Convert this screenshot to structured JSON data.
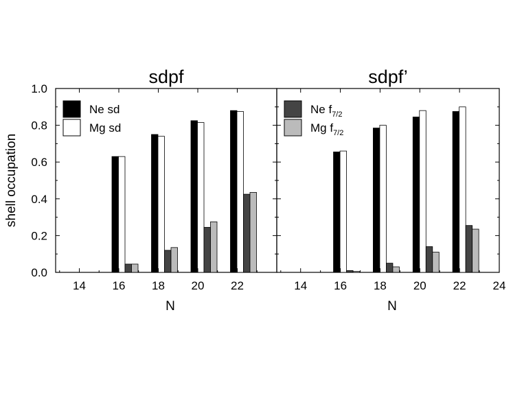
{
  "chart_data": [
    {
      "type": "bar",
      "title": "sdpf",
      "xlabel": "N",
      "ylabel": "shell occupation",
      "xlim": [
        12.8,
        24
      ],
      "ylim": [
        0.0,
        1.0
      ],
      "x_ticks": [
        "14",
        "16",
        "18",
        "20",
        "22"
      ],
      "y_ticks": [
        "0.0",
        "0.2",
        "0.4",
        "0.6",
        "0.8",
        "1.0"
      ],
      "legend": {
        "placement": "top-left",
        "entries": [
          {
            "main": "Ne sd",
            "sub": "",
            "color": "#000000"
          },
          {
            "main": "Mg sd",
            "sub": "",
            "color": "#ffffff"
          }
        ]
      },
      "categories": [
        16,
        18,
        20,
        22
      ],
      "series": [
        {
          "name": "Ne sd",
          "color": "#000000",
          "values": [
            0.63,
            0.75,
            0.825,
            0.88
          ]
        },
        {
          "name": "Mg sd",
          "color": "#ffffff",
          "values": [
            0.63,
            0.74,
            0.815,
            0.875
          ]
        },
        {
          "name": "Ne f7/2",
          "color": "#444444",
          "values": [
            0.045,
            0.12,
            0.245,
            0.425
          ]
        },
        {
          "name": "Mg f7/2",
          "color": "#bbbbbb",
          "values": [
            0.045,
            0.135,
            0.275,
            0.435
          ]
        }
      ]
    },
    {
      "type": "bar",
      "title": "sdpf’",
      "xlabel": "N",
      "ylabel": "",
      "xlim": [
        12.8,
        24
      ],
      "ylim": [
        0.0,
        1.0
      ],
      "x_ticks": [
        "14",
        "16",
        "18",
        "20",
        "22",
        "24"
      ],
      "y_ticks": [],
      "legend": {
        "placement": "top-left",
        "entries": [
          {
            "main": "Ne f",
            "sub": "7/2",
            "color": "#444444"
          },
          {
            "main": "Mg f",
            "sub": "7/2",
            "color": "#bbbbbb"
          }
        ]
      },
      "categories": [
        16,
        18,
        20,
        22
      ],
      "series": [
        {
          "name": "Ne sd",
          "color": "#000000",
          "values": [
            0.655,
            0.785,
            0.845,
            0.875
          ]
        },
        {
          "name": "Mg sd",
          "color": "#ffffff",
          "values": [
            0.66,
            0.8,
            0.88,
            0.9
          ]
        },
        {
          "name": "Ne f7/2",
          "color": "#444444",
          "values": [
            0.01,
            0.05,
            0.14,
            0.255
          ]
        },
        {
          "name": "Mg f7/2",
          "color": "#bbbbbb",
          "values": [
            0.005,
            0.03,
            0.11,
            0.235
          ]
        }
      ]
    }
  ]
}
